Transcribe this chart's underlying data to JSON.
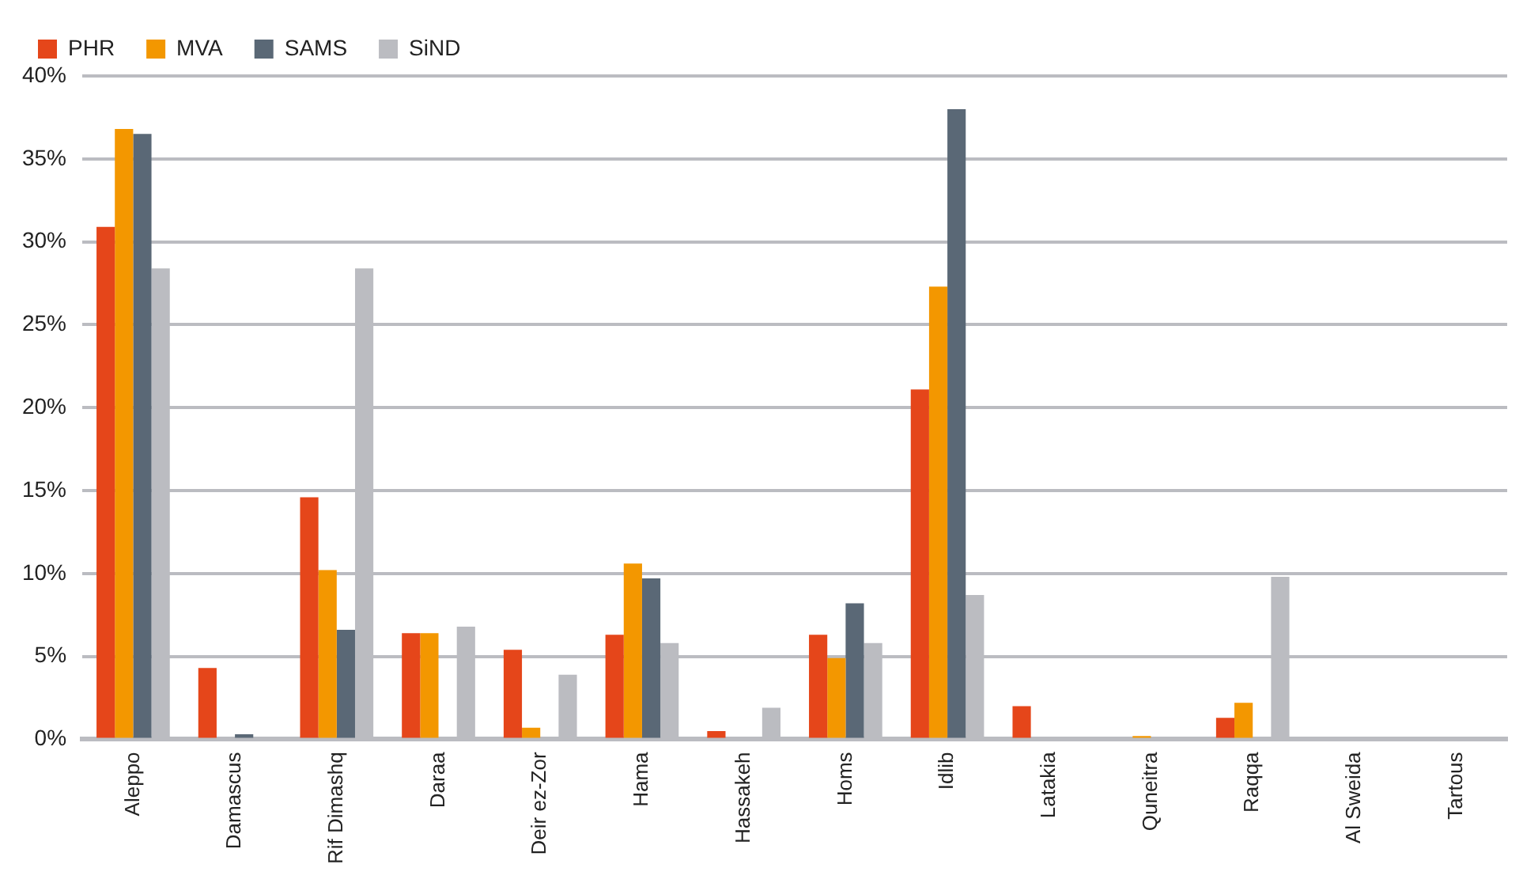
{
  "chart_data": {
    "type": "bar",
    "categories": [
      "Aleppo",
      "Damascus",
      "Rif Dimashq",
      "Daraa",
      "Deir ez-Zor",
      "Hama",
      "Hassakeh",
      "Homs",
      "Idlib",
      "Latakia",
      "Quneitra",
      "Raqqa",
      "Al Sweida",
      "Tartous"
    ],
    "series": [
      {
        "name": "PHR",
        "color": "#e5461a",
        "values": [
          30.9,
          4.3,
          14.6,
          6.4,
          5.4,
          6.3,
          0.5,
          6.3,
          21.1,
          2.0,
          0,
          1.3,
          0,
          0
        ]
      },
      {
        "name": "MVA",
        "color": "#f39700",
        "values": [
          36.8,
          0,
          10.2,
          6.4,
          0.7,
          10.6,
          0,
          4.9,
          27.3,
          0,
          0.2,
          2.2,
          0,
          0
        ]
      },
      {
        "name": "SAMS",
        "color": "#5a6876",
        "values": [
          36.5,
          0.3,
          6.6,
          0,
          0,
          9.7,
          0,
          8.2,
          38.0,
          0,
          0,
          0,
          0,
          0
        ]
      },
      {
        "name": "SiND",
        "color": "#bbbcc1",
        "values": [
          28.4,
          0,
          28.4,
          6.8,
          3.9,
          5.8,
          1.9,
          5.8,
          8.7,
          0,
          0,
          9.8,
          0,
          0
        ]
      }
    ],
    "ylim": [
      0,
      40
    ],
    "yticks": [
      {
        "value": 0,
        "label": "0%"
      },
      {
        "value": 5,
        "label": "5%"
      },
      {
        "value": 10,
        "label": "10%"
      },
      {
        "value": 15,
        "label": "15%"
      },
      {
        "value": 20,
        "label": "20%"
      },
      {
        "value": 25,
        "label": "25%"
      },
      {
        "value": 30,
        "label": "30%"
      },
      {
        "value": 35,
        "label": "35%"
      },
      {
        "value": 40,
        "label": "40%"
      }
    ],
    "grid": "y",
    "legend": "top left"
  }
}
